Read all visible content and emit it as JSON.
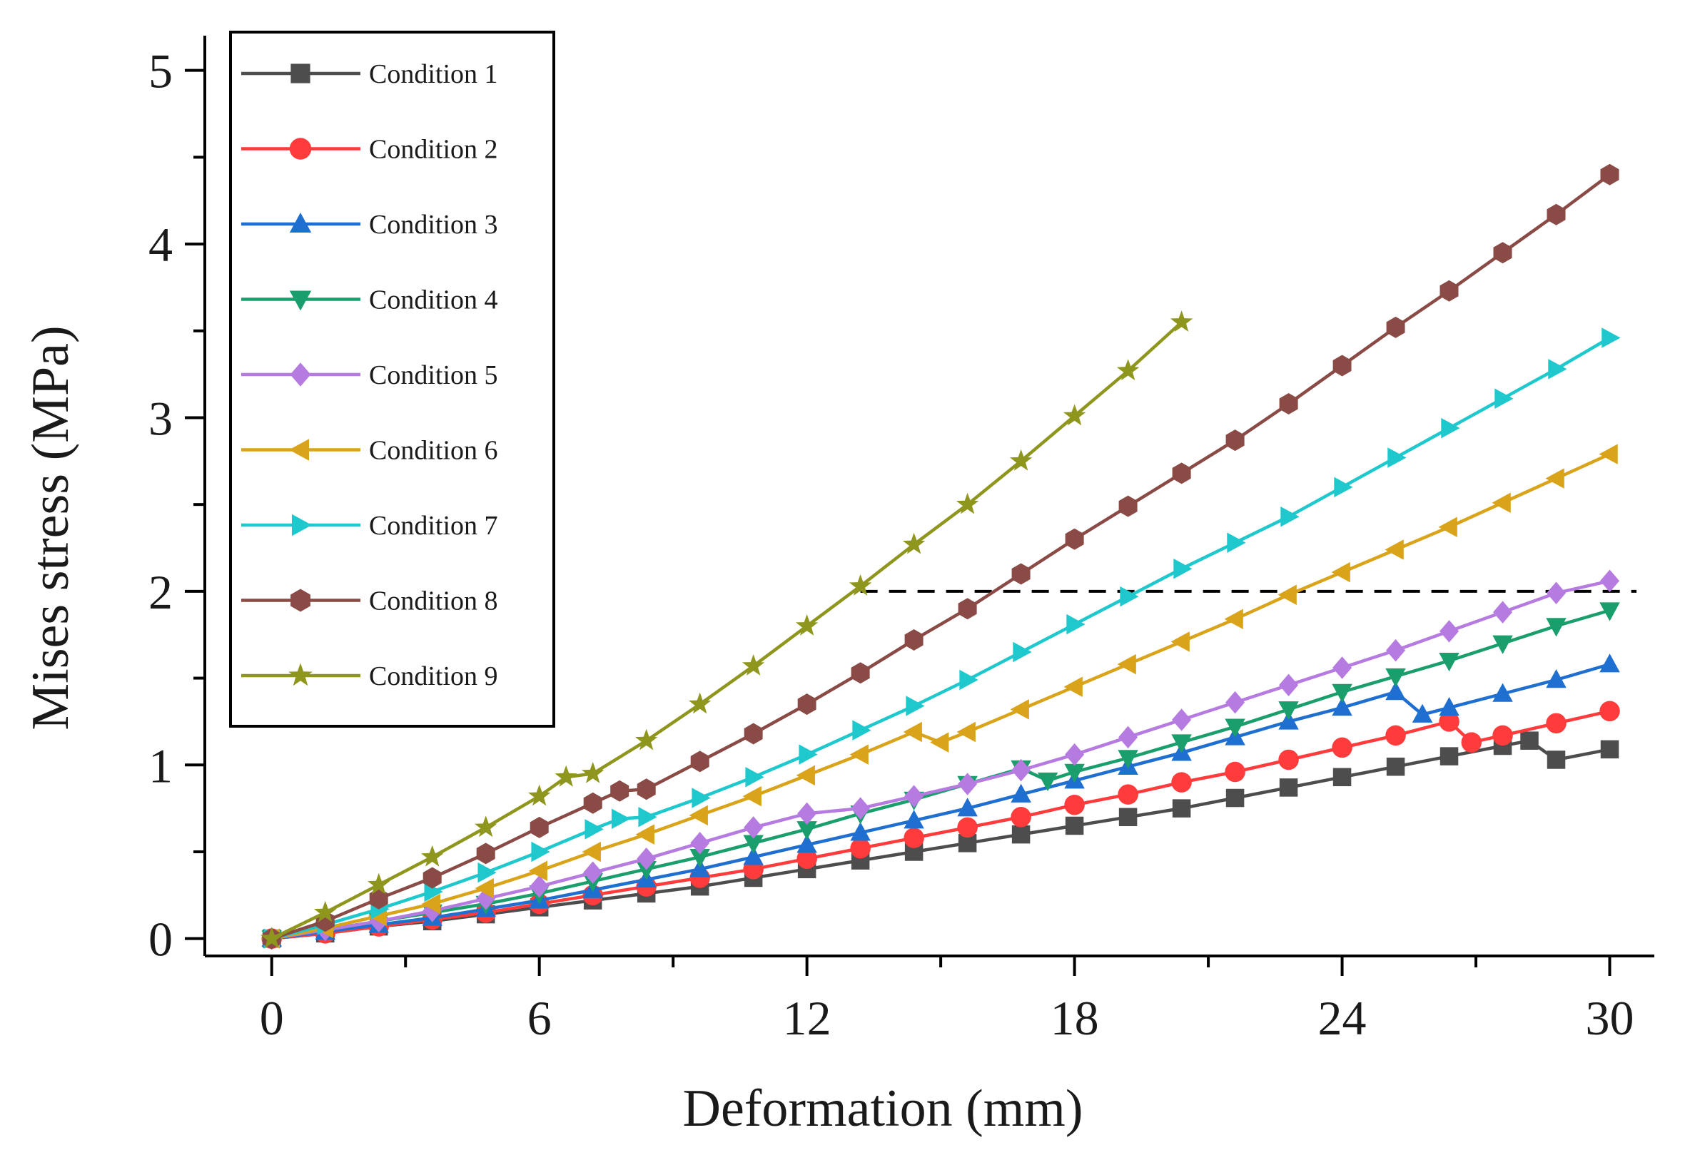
{
  "chart_data": {
    "type": "line",
    "title": "",
    "xlabel": "Deformation (mm)",
    "ylabel": "Mises stress (MPa)",
    "xlim": [
      -1.5,
      31
    ],
    "ylim": [
      -0.1,
      5.2
    ],
    "xticks": [
      0,
      6,
      12,
      18,
      24,
      30
    ],
    "xtick_labels": [
      "0",
      "6",
      "12",
      "18",
      "24",
      "30"
    ],
    "yticks": [
      0,
      1,
      2,
      3,
      4,
      5
    ],
    "ytick_labels": [
      "0",
      "1",
      "2",
      "3",
      "4",
      "5"
    ],
    "grid": false,
    "legend_position": "top-left",
    "reference_line": {
      "y": 2,
      "x_start": 13.2,
      "x_end": 30.6,
      "style": "dashed",
      "color": "#000000"
    },
    "series": [
      {
        "name": "Condition 1",
        "color": "#4d4d4d",
        "marker": "square",
        "x": [
          0,
          1.2,
          2.4,
          3.6,
          4.8,
          6,
          7.2,
          8.4,
          9.6,
          10.8,
          12,
          13.2,
          14.4,
          15.6,
          16.8,
          18,
          19.2,
          20.4,
          21.6,
          22.8,
          24,
          25.2,
          26.4,
          27.6,
          28.2,
          28.8,
          30
        ],
        "y": [
          0,
          0.03,
          0.07,
          0.1,
          0.14,
          0.18,
          0.22,
          0.26,
          0.3,
          0.35,
          0.4,
          0.45,
          0.5,
          0.55,
          0.6,
          0.65,
          0.7,
          0.75,
          0.81,
          0.87,
          0.93,
          0.99,
          1.05,
          1.11,
          1.14,
          1.03,
          1.09
        ]
      },
      {
        "name": "Condition 2",
        "color": "#ff3b3b",
        "marker": "circle",
        "x": [
          0,
          1.2,
          2.4,
          3.6,
          4.8,
          6,
          7.2,
          8.4,
          9.6,
          10.8,
          12,
          13.2,
          14.4,
          15.6,
          16.8,
          18,
          19.2,
          20.4,
          21.6,
          22.8,
          24,
          25.2,
          26.4,
          26.9,
          27.6,
          28.8,
          30
        ],
        "y": [
          0,
          0.03,
          0.07,
          0.11,
          0.15,
          0.2,
          0.25,
          0.3,
          0.35,
          0.4,
          0.46,
          0.52,
          0.58,
          0.64,
          0.7,
          0.77,
          0.83,
          0.9,
          0.96,
          1.03,
          1.1,
          1.17,
          1.25,
          1.13,
          1.17,
          1.24,
          1.31
        ]
      },
      {
        "name": "Condition 3",
        "color": "#1f6fd1",
        "marker": "triangle-up",
        "x": [
          0,
          1.2,
          2.4,
          3.6,
          4.8,
          6,
          7.2,
          8.4,
          9.6,
          10.8,
          12,
          13.2,
          14.4,
          15.6,
          16.8,
          18,
          19.2,
          20.4,
          21.6,
          22.8,
          24,
          25.2,
          25.8,
          26.4,
          27.6,
          28.8,
          30
        ],
        "y": [
          0,
          0.04,
          0.08,
          0.12,
          0.17,
          0.22,
          0.28,
          0.34,
          0.4,
          0.47,
          0.54,
          0.61,
          0.68,
          0.75,
          0.83,
          0.91,
          0.99,
          1.07,
          1.16,
          1.25,
          1.33,
          1.42,
          1.29,
          1.33,
          1.41,
          1.49,
          1.58
        ]
      },
      {
        "name": "Condition 4",
        "color": "#1a9e6c",
        "marker": "triangle-down",
        "x": [
          0,
          1.2,
          2.4,
          3.6,
          4.8,
          6,
          7.2,
          8.4,
          9.6,
          10.8,
          12,
          13.2,
          14.4,
          15.6,
          16.8,
          17.4,
          18,
          19.2,
          20.4,
          21.6,
          22.8,
          24,
          25.2,
          26.4,
          27.6,
          28.8,
          30
        ],
        "y": [
          0,
          0.05,
          0.1,
          0.15,
          0.2,
          0.26,
          0.33,
          0.4,
          0.47,
          0.55,
          0.63,
          0.72,
          0.8,
          0.89,
          0.98,
          0.91,
          0.96,
          1.04,
          1.13,
          1.22,
          1.32,
          1.42,
          1.51,
          1.6,
          1.7,
          1.8,
          1.89
        ]
      },
      {
        "name": "Condition 5",
        "color": "#b57be0",
        "marker": "diamond",
        "x": [
          0,
          1.2,
          2.4,
          3.6,
          4.8,
          6,
          7.2,
          8.4,
          9.6,
          10.8,
          12,
          13.2,
          14.4,
          15.6,
          16.8,
          18,
          19.2,
          20.4,
          21.6,
          22.8,
          24,
          25.2,
          26.4,
          27.6,
          28.8,
          30
        ],
        "y": [
          0,
          0.05,
          0.1,
          0.16,
          0.23,
          0.3,
          0.38,
          0.46,
          0.55,
          0.64,
          0.72,
          0.75,
          0.82,
          0.89,
          0.97,
          1.06,
          1.16,
          1.26,
          1.36,
          1.46,
          1.56,
          1.66,
          1.77,
          1.88,
          1.99,
          2.06
        ]
      },
      {
        "name": "Condition 6",
        "color": "#d9a31a",
        "marker": "triangle-left",
        "x": [
          0,
          1.2,
          2.4,
          3.6,
          4.8,
          6,
          7.2,
          8.4,
          9.6,
          10.8,
          12,
          13.2,
          14.4,
          15.0,
          15.6,
          16.8,
          18,
          19.2,
          20.4,
          21.6,
          22.8,
          24,
          25.2,
          26.4,
          27.6,
          28.8,
          30
        ],
        "y": [
          0,
          0.06,
          0.13,
          0.2,
          0.29,
          0.39,
          0.5,
          0.6,
          0.71,
          0.82,
          0.94,
          1.06,
          1.19,
          1.13,
          1.19,
          1.32,
          1.45,
          1.58,
          1.71,
          1.84,
          1.98,
          2.11,
          2.24,
          2.37,
          2.51,
          2.65,
          2.79
        ]
      },
      {
        "name": "Condition 7",
        "color": "#1ec8cc",
        "marker": "triangle-right",
        "x": [
          0,
          1.2,
          2.4,
          3.6,
          4.8,
          6,
          7.2,
          7.8,
          8.4,
          9.6,
          10.8,
          12,
          13.2,
          14.4,
          15.6,
          16.8,
          18,
          19.2,
          20.4,
          21.6,
          22.8,
          24,
          25.2,
          26.4,
          27.6,
          28.8,
          30
        ],
        "y": [
          0,
          0.08,
          0.17,
          0.27,
          0.38,
          0.5,
          0.63,
          0.69,
          0.7,
          0.81,
          0.93,
          1.06,
          1.2,
          1.34,
          1.49,
          1.65,
          1.81,
          1.97,
          2.13,
          2.28,
          2.43,
          2.6,
          2.77,
          2.94,
          3.11,
          3.28,
          3.46
        ]
      },
      {
        "name": "Condition 8",
        "color": "#8a4a45",
        "marker": "hexagon",
        "x": [
          0,
          1.2,
          2.4,
          3.6,
          4.8,
          6,
          7.2,
          7.8,
          8.4,
          9.6,
          10.8,
          12,
          13.2,
          14.4,
          15.6,
          16.8,
          18,
          19.2,
          20.4,
          21.6,
          22.8,
          24,
          25.2,
          26.4,
          27.6,
          28.8,
          30
        ],
        "y": [
          0,
          0.1,
          0.23,
          0.35,
          0.49,
          0.64,
          0.78,
          0.85,
          0.86,
          1.02,
          1.18,
          1.35,
          1.53,
          1.72,
          1.9,
          2.1,
          2.3,
          2.49,
          2.68,
          2.87,
          3.08,
          3.3,
          3.52,
          3.73,
          3.95,
          4.17,
          4.4
        ]
      },
      {
        "name": "Condition 9",
        "color": "#8f961d",
        "marker": "star",
        "x": [
          0,
          1.2,
          2.4,
          3.6,
          4.8,
          6,
          6.6,
          7.2,
          8.4,
          9.6,
          10.8,
          12,
          13.2,
          14.4,
          15.6,
          16.8,
          18,
          19.2,
          20.4
        ],
        "y": [
          0,
          0.15,
          0.31,
          0.47,
          0.64,
          0.82,
          0.93,
          0.95,
          1.14,
          1.35,
          1.57,
          1.8,
          2.03,
          2.27,
          2.5,
          2.75,
          3.01,
          3.27,
          3.55
        ]
      }
    ]
  }
}
